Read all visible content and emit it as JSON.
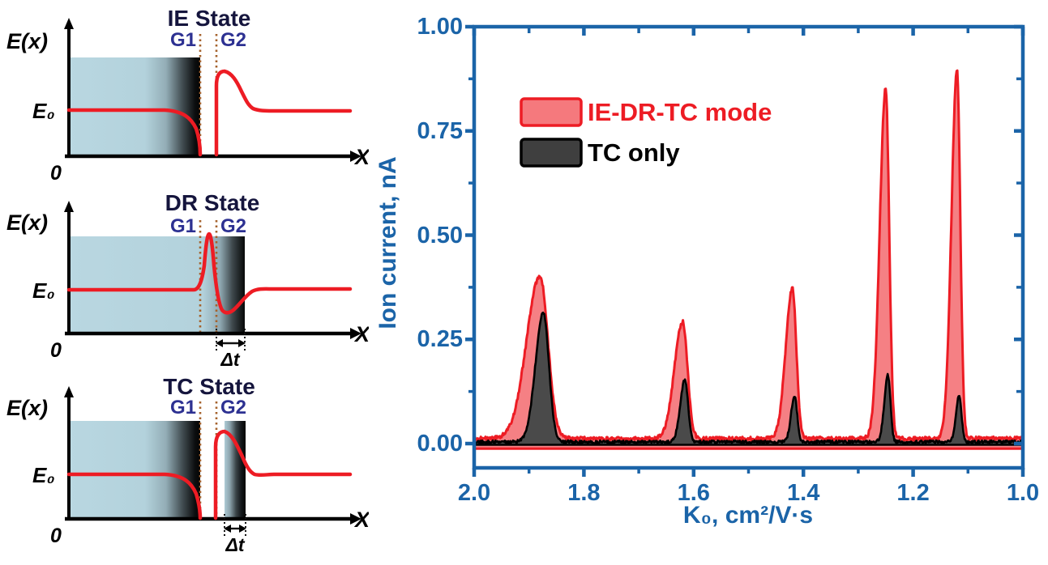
{
  "figure": {
    "panels": [
      {
        "title": "IE State",
        "energy_axis_label": "E(x)",
        "e0_label": "E₀",
        "origin_label": "0",
        "distance_axis_label": "X",
        "gate1_label": "G1",
        "gate2_label": "G2"
      },
      {
        "title": "DR State",
        "energy_axis_label": "E(x)",
        "e0_label": "E₀",
        "origin_label": "0",
        "distance_axis_label": "X",
        "gate1_label": "G1",
        "gate2_label": "G2",
        "delta_t_label": "Δt"
      },
      {
        "title": "TC State",
        "energy_axis_label": "E(x)",
        "e0_label": "E₀",
        "origin_label": "0",
        "distance_axis_label": "X",
        "gate1_label": "G1",
        "gate2_label": "G2",
        "delta_t_label": "Δt"
      }
    ]
  },
  "chart": {
    "y_axis_title": "Ion current, nA",
    "x_axis_title": "K₀, cm²/V·s",
    "axis_color": "#1b64a8",
    "legend": [
      {
        "label": "IE-DR-TC mode",
        "color": "#ed1c24"
      },
      {
        "label": "TC only",
        "color": "#000000"
      }
    ]
  },
  "chart_data": {
    "type": "line",
    "title": "",
    "xlabel": "K₀, cm²/V·s",
    "ylabel": "Ion current, nA",
    "xlim": [
      2.0,
      1.0
    ],
    "ylim": [
      0.0,
      1.0
    ],
    "x_axis_reversed": true,
    "grid": false,
    "legend_position": "upper left",
    "x_ticks": [
      "2.0",
      "1.8",
      "1.6",
      "1.4",
      "1.2",
      "1.0"
    ],
    "y_ticks": [
      "0.00",
      "0.25",
      "0.50",
      "0.75",
      "1.00"
    ],
    "series": [
      {
        "name": "IE-DR-TC mode",
        "color": "#ed1c24",
        "fill": "#f58084",
        "baseline": 0.012,
        "noise": 0.009,
        "close_at": -0.012,
        "skew": 1.7,
        "seed": 3,
        "peaks": [
          {
            "k0": 1.88,
            "height": 0.39,
            "fwhm": 0.034
          },
          {
            "k0": 1.62,
            "height": 0.28,
            "fwhm": 0.021
          },
          {
            "k0": 1.42,
            "height": 0.36,
            "fwhm": 0.017
          },
          {
            "k0": 1.25,
            "height": 0.84,
            "fwhm": 0.015
          },
          {
            "k0": 1.12,
            "height": 0.885,
            "fwhm": 0.014
          }
        ]
      },
      {
        "name": "TC only",
        "color": "#000000",
        "fill": "#4a4a4a",
        "baseline": 0.004,
        "noise": 0.007,
        "close_at": -0.003,
        "skew": 1.4,
        "seed": 17,
        "peaks": [
          {
            "k0": 1.874,
            "height": 0.31,
            "fwhm": 0.024
          },
          {
            "k0": 1.616,
            "height": 0.15,
            "fwhm": 0.014
          },
          {
            "k0": 1.416,
            "height": 0.11,
            "fwhm": 0.011
          },
          {
            "k0": 1.246,
            "height": 0.16,
            "fwhm": 0.011
          },
          {
            "k0": 1.116,
            "height": 0.11,
            "fwhm": 0.01
          }
        ]
      }
    ]
  }
}
